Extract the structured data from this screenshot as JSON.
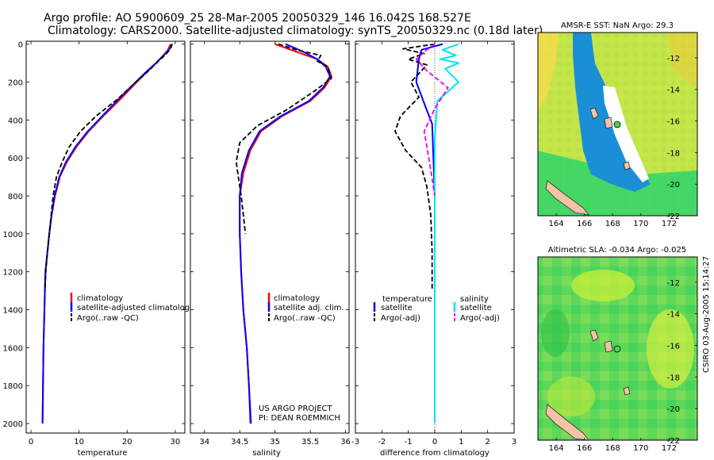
{
  "header": {
    "line1": "Argo profile: AO 5900609_25 28-Mar-2005 20050329_146 16.042S 168.527E",
    "line2": "Climatology: CARS2000. Satellite-adjusted climatology: synTS_20050329.nc (0.18d later)"
  },
  "footer": {
    "project": "US ARGO PROJECT",
    "pi": "PI: DEAN ROEMMICH",
    "stamp": "CSIRO 03-Aug-2005 15:14:27"
  },
  "colors": {
    "climatology": "#ff0000",
    "satellite": "#0000ff",
    "argo": "#000000",
    "salinity_sat": "#00e5ee",
    "salinity_argo": "#ee00ee",
    "land": "#f4c2a8"
  },
  "chart_data": [
    {
      "type": "line",
      "id": "temperature",
      "xlabel": "temperature",
      "ylabel": "",
      "xlim": [
        -1,
        32
      ],
      "ylim": [
        2050,
        0
      ],
      "xticks": [
        0,
        10,
        20,
        30
      ],
      "xticklabels": [
        "0",
        "10",
        "20",
        "30"
      ],
      "yticks": [
        0,
        200,
        400,
        600,
        800,
        1000,
        1200,
        1400,
        1600,
        1800,
        2000
      ],
      "yticklabels": [
        "0",
        "200",
        "400",
        "600",
        "800",
        "1000",
        "1200",
        "1400",
        "1600",
        "1800",
        "2000"
      ],
      "legend": [
        "climatology",
        "satellite-adjusted climatology",
        "Argo(..raw -QC)"
      ],
      "series": [
        {
          "name": "climatology",
          "style": "solid",
          "color": "#ff0000",
          "x": [
            29.0,
            28.5,
            27.5,
            26.0,
            24.0,
            22.0,
            19.0,
            15.0,
            12.0,
            9.5,
            7.5,
            6.0,
            5.0,
            4.3,
            3.8,
            3.4,
            3.0,
            2.8,
            2.6,
            2.5,
            2.4
          ],
          "y": [
            0,
            30,
            60,
            100,
            150,
            200,
            280,
            380,
            460,
            540,
            620,
            700,
            800,
            900,
            1000,
            1100,
            1200,
            1400,
            1600,
            1800,
            2000
          ]
        },
        {
          "name": "satellite-adjusted climatology",
          "style": "solid",
          "color": "#0000ff",
          "x": [
            29.3,
            28.7,
            27.6,
            26.0,
            23.8,
            21.8,
            18.6,
            14.8,
            11.8,
            9.3,
            7.3,
            5.9,
            4.9,
            4.3,
            3.8,
            3.4,
            3.0,
            2.8,
            2.6,
            2.5,
            2.4
          ],
          "y": [
            0,
            30,
            60,
            100,
            150,
            200,
            280,
            380,
            460,
            540,
            620,
            700,
            800,
            900,
            1000,
            1100,
            1200,
            1400,
            1600,
            1800,
            2000
          ]
        },
        {
          "name": "Argo(..raw -QC)",
          "style": "dash",
          "color": "#000000",
          "x": [
            29.4,
            29.0,
            28.0,
            26.5,
            24.5,
            21.8,
            18.0,
            13.5,
            10.3,
            8.0,
            6.5,
            5.3,
            4.6,
            4.2,
            3.8,
            3.4,
            3.1,
            2.9
          ],
          "y": [
            0,
            25,
            55,
            90,
            140,
            200,
            290,
            380,
            460,
            540,
            620,
            700,
            800,
            900,
            1000,
            1100,
            1200,
            1300
          ]
        }
      ]
    },
    {
      "type": "line",
      "id": "salinity",
      "xlabel": "salinity",
      "xlim": [
        33.8,
        36.05
      ],
      "ylim": [
        2050,
        0
      ],
      "xticks": [
        34,
        34.5,
        35,
        35.5,
        36
      ],
      "xticklabels": [
        "34",
        "34.5",
        "35",
        "35.5",
        "36"
      ],
      "legend": [
        "climatology",
        "satellite adj. clim.",
        "Argo(..raw -QC)"
      ],
      "series": [
        {
          "name": "climatology",
          "style": "solid",
          "color": "#ff0000",
          "x": [
            35.0,
            35.3,
            35.6,
            35.75,
            35.8,
            35.7,
            35.5,
            35.1,
            34.8,
            34.65,
            34.55,
            34.5,
            34.5,
            34.52,
            34.55,
            34.6,
            34.63,
            34.65
          ],
          "y": [
            0,
            40,
            80,
            120,
            170,
            230,
            300,
            380,
            460,
            560,
            680,
            800,
            1000,
            1200,
            1400,
            1600,
            1800,
            2000
          ]
        },
        {
          "name": "satellite adj. clim.",
          "style": "solid",
          "color": "#0000ff",
          "x": [
            35.15,
            35.4,
            35.6,
            35.72,
            35.78,
            35.68,
            35.48,
            35.08,
            34.78,
            34.63,
            34.53,
            34.5,
            34.5,
            34.52,
            34.55,
            34.6,
            34.63,
            34.66
          ],
          "y": [
            0,
            40,
            80,
            120,
            170,
            230,
            300,
            380,
            460,
            560,
            680,
            800,
            1000,
            1200,
            1400,
            1600,
            1800,
            2000
          ]
        },
        {
          "name": "Argo(..raw -QC)",
          "style": "dash",
          "color": "#000000",
          "x": [
            35.05,
            35.3,
            35.65,
            35.6,
            35.75,
            35.8,
            35.55,
            35.15,
            34.75,
            34.5,
            34.45,
            34.48,
            34.52,
            34.55,
            34.58
          ],
          "y": [
            0,
            30,
            60,
            90,
            120,
            180,
            250,
            350,
            430,
            520,
            620,
            700,
            800,
            900,
            1000
          ]
        }
      ]
    },
    {
      "type": "line",
      "id": "difference",
      "xlabel": "difference from climatology",
      "xlim": [
        -3,
        3
      ],
      "ylim": [
        2050,
        0
      ],
      "xticks": [
        -3,
        -2,
        -1,
        0,
        1,
        2,
        3
      ],
      "xticklabels": [
        "-3",
        "-2",
        "-1",
        "0",
        "1",
        "2",
        "3"
      ],
      "legend_temp": [
        "temperature",
        "satellite",
        "Argo(-adj)"
      ],
      "legend_sal": [
        "salinity",
        "satellite",
        "Argo(-adj)"
      ],
      "series": [
        {
          "name": "temperature satellite",
          "style": "solid",
          "color": "#0000ff",
          "x": [
            0.3,
            -0.5,
            -0.6,
            -0.7,
            -0.35,
            -0.1,
            -0.05,
            0.0,
            0.0,
            0.0,
            0.0,
            0.0
          ],
          "y": [
            0,
            30,
            80,
            200,
            330,
            420,
            600,
            800,
            1000,
            1200,
            1400,
            2000
          ]
        },
        {
          "name": "temperature Argo(-adj)",
          "style": "dash",
          "color": "#000000",
          "x": [
            0.0,
            -1.2,
            -0.4,
            -1.0,
            -0.3,
            -0.9,
            -0.6,
            -1.3,
            -1.5,
            -1.1,
            -0.5,
            -0.3,
            -0.15,
            -0.1,
            -0.1
          ],
          "y": [
            0,
            25,
            50,
            80,
            110,
            200,
            280,
            380,
            460,
            560,
            650,
            750,
            900,
            1100,
            1300
          ]
        },
        {
          "name": "salinity satellite",
          "style": "solid",
          "color": "#00e5ee",
          "x": [
            0.9,
            0.3,
            0.8,
            0.2,
            0.9,
            0.4,
            0.9,
            0.1,
            0.0,
            0.0,
            0.0,
            0.0
          ],
          "y": [
            0,
            30,
            60,
            80,
            100,
            130,
            200,
            300,
            500,
            700,
            1000,
            2000
          ]
        },
        {
          "name": "salinity Argo(-adj)",
          "style": "dash",
          "color": "#ee00ee",
          "x": [
            0.0,
            -0.3,
            -0.7,
            -0.3,
            0.5,
            0.0,
            -0.4,
            -0.2,
            0.0
          ],
          "y": [
            0,
            30,
            80,
            140,
            230,
            340,
            460,
            620,
            800
          ]
        }
      ]
    },
    {
      "type": "heatmap",
      "id": "sst_map",
      "title": "AMSR-E SST: NaN Argo: 29.3",
      "xticks": [
        164,
        166,
        168,
        170,
        172
      ],
      "yticks": [
        -12,
        -14,
        -16,
        -18,
        -20,
        -22
      ],
      "xticklabels": [
        "164",
        "166",
        "168",
        "170",
        "172"
      ],
      "yticklabels": [
        "-12",
        "-14",
        "-16",
        "-18",
        "-20",
        "-22"
      ],
      "xlim": [
        162.7,
        174
      ],
      "ylim": [
        -22,
        -10.4
      ],
      "float_lon": 168.527,
      "float_lat": -16.042
    },
    {
      "type": "heatmap",
      "id": "sla_map",
      "title": "Altimetric SLA: -0.034 Argo: -0.025",
      "xticks": [
        164,
        166,
        168,
        170,
        172
      ],
      "yticks": [
        -12,
        -14,
        -16,
        -18,
        -20,
        -22
      ],
      "xticklabels": [
        "164",
        "166",
        "168",
        "170",
        "172"
      ],
      "yticklabels": [
        "-12",
        "-14",
        "-16",
        "-18",
        "-20",
        "-22"
      ],
      "xlim": [
        162.7,
        174
      ],
      "ylim": [
        -22,
        -10.4
      ],
      "float_lon": 168.527,
      "float_lat": -16.042
    }
  ]
}
